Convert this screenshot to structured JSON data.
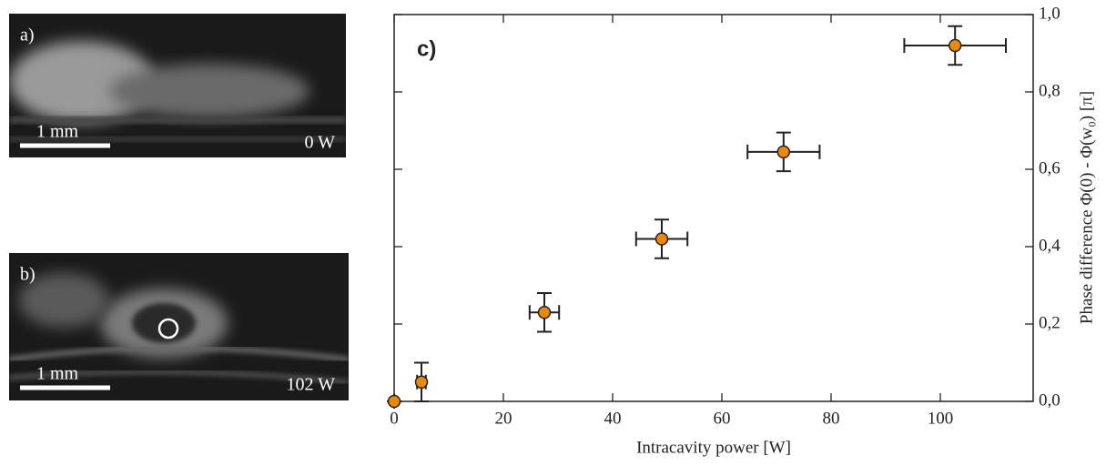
{
  "panels": [
    {
      "label": "a)",
      "scale": "1 mm",
      "power": "0 W"
    },
    {
      "label": "b)",
      "scale": "1 mm",
      "power": "102 W"
    }
  ],
  "chart_data": {
    "type": "scatter",
    "panel_label": "c)",
    "x_label": "Intracavity power [W]",
    "y_label": "Phase difference Φ(0) - Φ(w₀) [π]",
    "x": [
      0,
      5,
      27.5,
      49,
      71.3,
      102.7
    ],
    "values": [
      0,
      0.05,
      0.23,
      0.42,
      0.645,
      0.92
    ],
    "xerr": [
      0,
      0.8,
      2.7,
      4.7,
      6.6,
      9.3
    ],
    "yerr": [
      0,
      0.05,
      0.05,
      0.05,
      0.05,
      0.05
    ],
    "color": "#e8890c",
    "xlim": [
      0,
      117
    ],
    "ylim": [
      0,
      1
    ],
    "xticks": [
      0,
      20,
      40,
      60,
      80,
      100
    ],
    "yticks": [
      {
        "value": 0,
        "label": "0,0"
      },
      {
        "value": 0.2,
        "label": "0,2"
      },
      {
        "value": 0.4,
        "label": "0,4"
      },
      {
        "value": 0.6,
        "label": "0,6"
      },
      {
        "value": 0.8,
        "label": "0,8"
      },
      {
        "value": 1,
        "label": "1,0"
      }
    ]
  }
}
